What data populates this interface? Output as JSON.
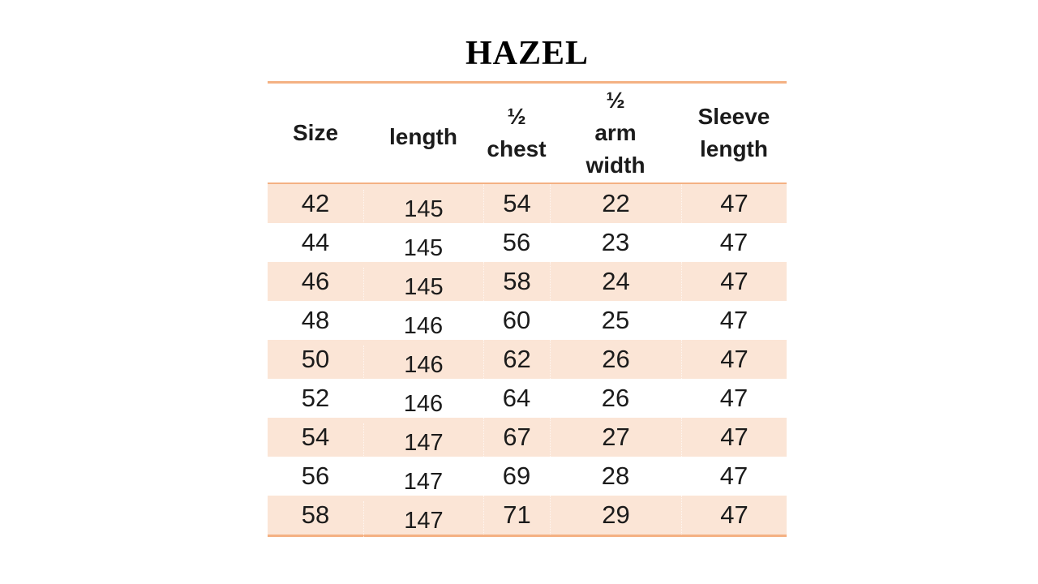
{
  "title": "HAZEL",
  "colors": {
    "band": "#fbe5d6",
    "rule": "#f4b183",
    "text": "#1b1b1b"
  },
  "table": {
    "headers": {
      "size": "Size",
      "length": "length",
      "half_chest": "½\nchest",
      "half_arm_width": "½\narm\nwidth",
      "sleeve_length": "Sleeve\nlength"
    },
    "rows": [
      {
        "size": "42",
        "length": "145",
        "half_chest": "54",
        "half_arm_width": "22",
        "sleeve_length": "47"
      },
      {
        "size": "44",
        "length": "145",
        "half_chest": "56",
        "half_arm_width": "23",
        "sleeve_length": "47"
      },
      {
        "size": "46",
        "length": "145",
        "half_chest": "58",
        "half_arm_width": "24",
        "sleeve_length": "47"
      },
      {
        "size": "48",
        "length": "146",
        "half_chest": "60",
        "half_arm_width": "25",
        "sleeve_length": "47"
      },
      {
        "size": "50",
        "length": "146",
        "half_chest": "62",
        "half_arm_width": "26",
        "sleeve_length": "47"
      },
      {
        "size": "52",
        "length": "146",
        "half_chest": "64",
        "half_arm_width": "26",
        "sleeve_length": "47"
      },
      {
        "size": "54",
        "length": "147",
        "half_chest": "67",
        "half_arm_width": "27",
        "sleeve_length": "47"
      },
      {
        "size": "56",
        "length": "147",
        "half_chest": "69",
        "half_arm_width": "28",
        "sleeve_length": "47"
      },
      {
        "size": "58",
        "length": "147",
        "half_chest": "71",
        "half_arm_width": "29",
        "sleeve_length": "47"
      }
    ]
  }
}
